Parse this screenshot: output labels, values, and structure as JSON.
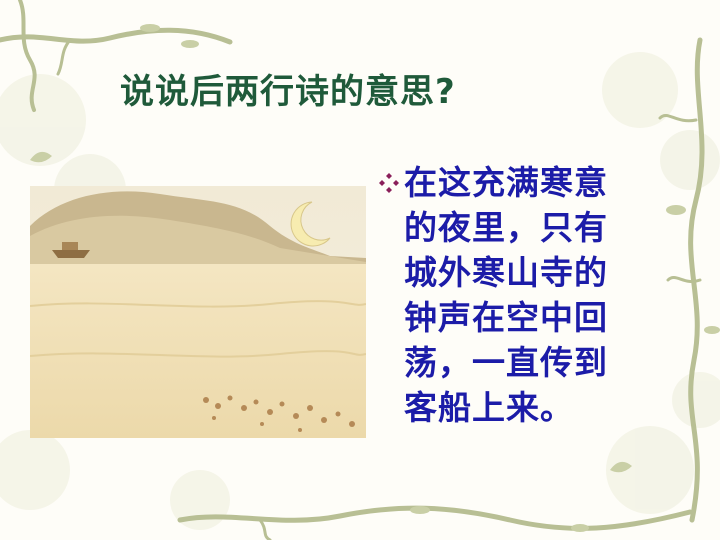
{
  "slide": {
    "title": "说说后两行诗的意思?",
    "bullet_icon": "diamond-bullet-icon",
    "body_lines": [
      "在这充满寒意",
      "的夜里，只有",
      "城外寒山寺的",
      "钟声在空中回",
      "荡，一直传到",
      "客船上来。"
    ],
    "illustration": "night-landscape-with-crescent-moon",
    "colors": {
      "title": "#1f5a3a",
      "body_text": "#1c1ca8",
      "bullet": "#8a1f5a",
      "vine": "#b8bf94",
      "background": "#fefdf8"
    }
  }
}
